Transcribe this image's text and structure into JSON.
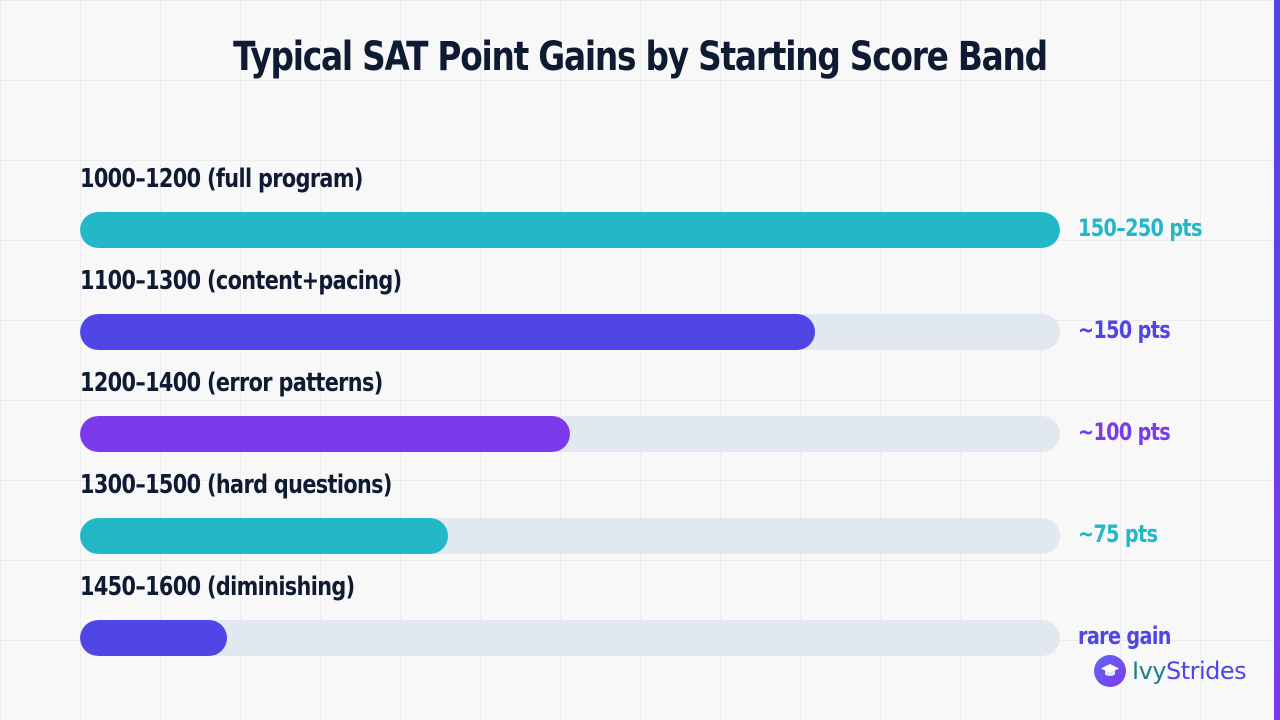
{
  "chart_data": {
    "type": "bar",
    "orientation": "horizontal",
    "title": "Typical SAT Point Gains by Starting Score Band",
    "categories": [
      "1000–1200 (full program)",
      "1100–1300 (content+pacing)",
      "1200–1400 (error patterns)",
      "1300–1500 (hard questions)",
      "1450–1600 (diminishing)"
    ],
    "value_labels": [
      "150–250 pts",
      "~150 pts",
      "~100 pts",
      "~75 pts",
      "rare gain"
    ],
    "values": [
      1.0,
      0.75,
      0.5,
      0.375,
      0.15
    ],
    "colors": [
      "#22b8c8",
      "#4f46e5",
      "#7c3aed",
      "#22b8c8",
      "#4f46e5"
    ],
    "track_color": "#e2e8f0",
    "grid": true
  },
  "brand": {
    "name_part1": "Ivy",
    "name_part2": "Strides",
    "icon": "graduation-cap-icon"
  }
}
